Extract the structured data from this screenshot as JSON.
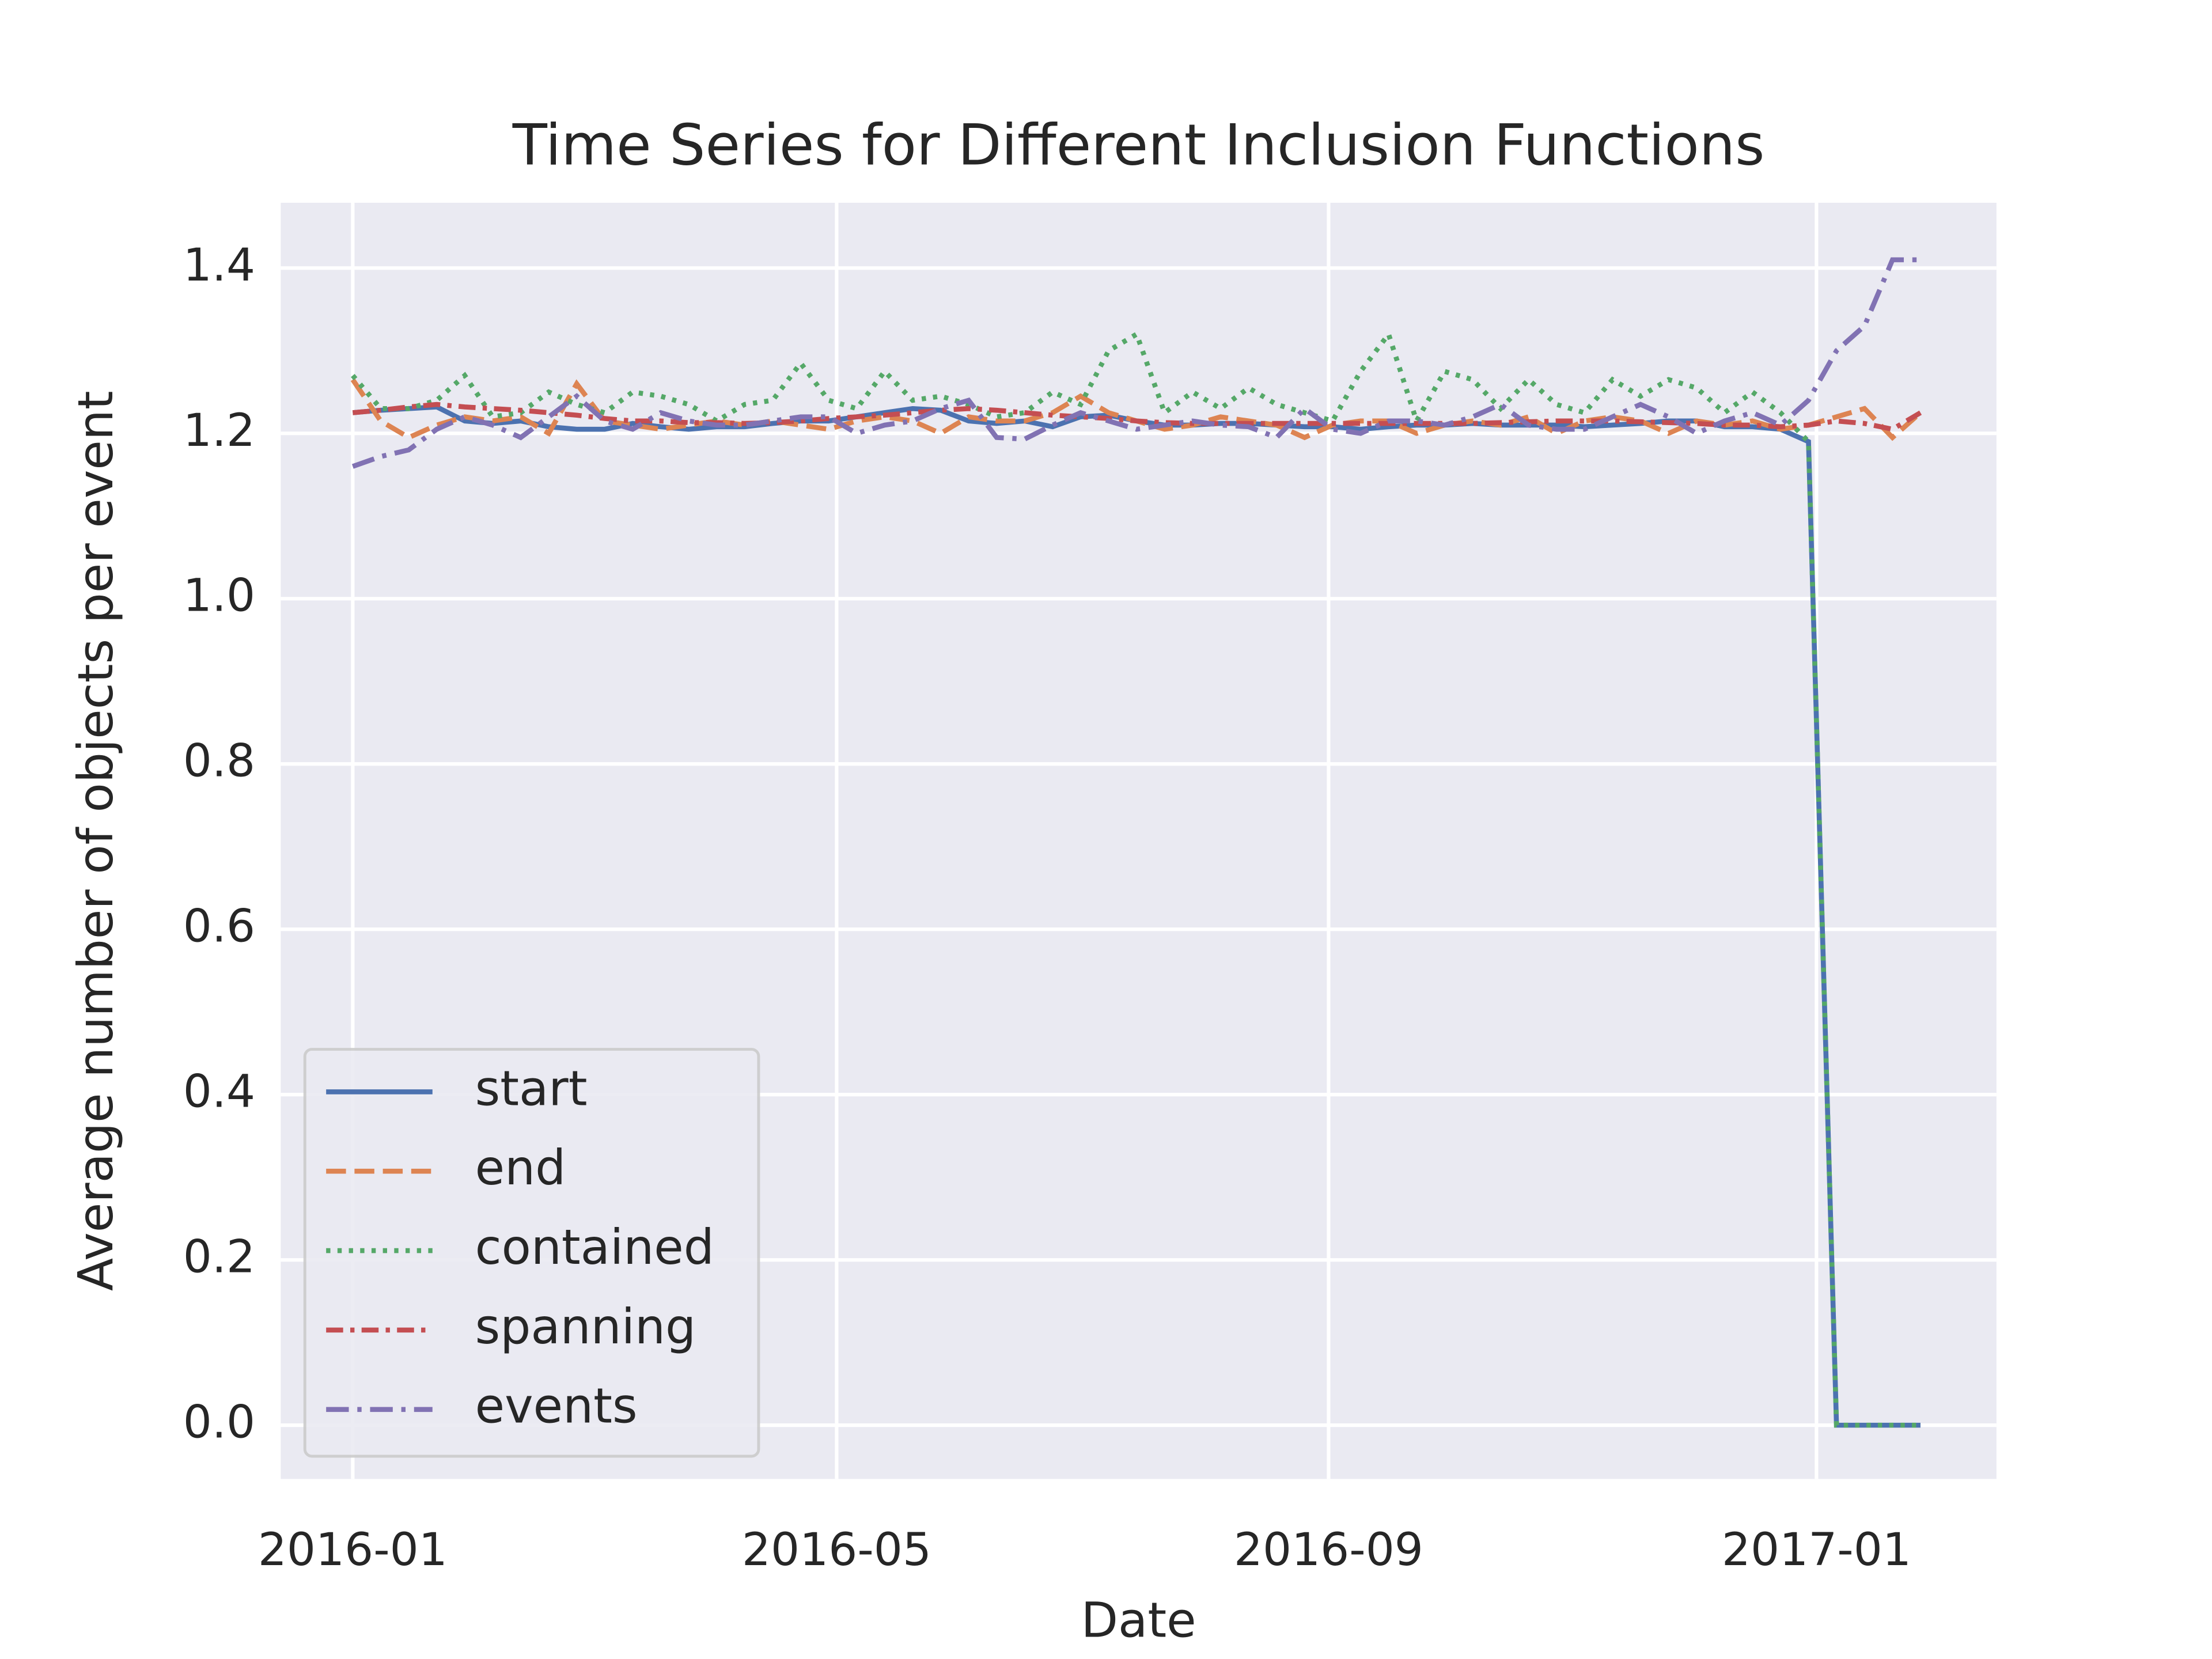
{
  "chart_data": {
    "type": "line",
    "title": "Time Series for Different Inclusion Functions",
    "x_label": "Date",
    "y_label": "Average number of objects per event",
    "x": [
      "2016-01-01",
      "2016-01-08",
      "2016-01-15",
      "2016-01-22",
      "2016-01-29",
      "2016-02-05",
      "2016-02-12",
      "2016-02-19",
      "2016-02-26",
      "2016-03-04",
      "2016-03-11",
      "2016-03-18",
      "2016-03-25",
      "2016-04-01",
      "2016-04-08",
      "2016-04-15",
      "2016-04-22",
      "2016-04-29",
      "2016-05-06",
      "2016-05-13",
      "2016-05-20",
      "2016-05-27",
      "2016-06-03",
      "2016-06-10",
      "2016-06-17",
      "2016-06-24",
      "2016-07-01",
      "2016-07-08",
      "2016-07-15",
      "2016-07-22",
      "2016-07-29",
      "2016-08-05",
      "2016-08-12",
      "2016-08-19",
      "2016-08-26",
      "2016-09-02",
      "2016-09-09",
      "2016-09-16",
      "2016-09-23",
      "2016-09-30",
      "2016-10-07",
      "2016-10-14",
      "2016-10-21",
      "2016-10-28",
      "2016-11-04",
      "2016-11-11",
      "2016-11-18",
      "2016-11-25",
      "2016-12-02",
      "2016-12-09",
      "2016-12-16",
      "2016-12-23",
      "2016-12-30",
      "2017-01-06",
      "2017-01-13",
      "2017-01-20",
      "2017-01-27"
    ],
    "series": [
      {
        "name": "start",
        "color": "#4c72b0",
        "linestyle": "solid",
        "values": [
          1.225,
          1.228,
          1.23,
          1.232,
          1.215,
          1.212,
          1.215,
          1.208,
          1.205,
          1.205,
          1.212,
          1.208,
          1.205,
          1.208,
          1.208,
          1.212,
          1.215,
          1.215,
          1.22,
          1.225,
          1.23,
          1.228,
          1.215,
          1.212,
          1.215,
          1.208,
          1.22,
          1.222,
          1.215,
          1.21,
          1.21,
          1.212,
          1.212,
          1.21,
          1.208,
          1.208,
          1.205,
          1.208,
          1.21,
          1.21,
          1.212,
          1.21,
          1.21,
          1.21,
          1.208,
          1.21,
          1.212,
          1.215,
          1.215,
          1.208,
          1.208,
          1.205,
          1.19,
          0,
          0,
          0,
          0
        ]
      },
      {
        "name": "end",
        "color": "#dd8452",
        "linestyle": "dashed",
        "values": [
          1.265,
          1.215,
          1.195,
          1.21,
          1.22,
          1.215,
          1.22,
          1.2,
          1.26,
          1.215,
          1.21,
          1.205,
          1.21,
          1.215,
          1.21,
          1.215,
          1.21,
          1.205,
          1.215,
          1.22,
          1.215,
          1.2,
          1.22,
          1.215,
          1.215,
          1.225,
          1.245,
          1.225,
          1.215,
          1.205,
          1.21,
          1.22,
          1.215,
          1.21,
          1.195,
          1.21,
          1.215,
          1.215,
          1.2,
          1.21,
          1.215,
          1.21,
          1.22,
          1.2,
          1.215,
          1.22,
          1.215,
          1.2,
          1.215,
          1.21,
          1.215,
          1.205,
          1.21,
          1.22,
          1.23,
          1.195,
          1.225
        ]
      },
      {
        "name": "contained",
        "color": "#55a868",
        "linestyle": "dotted",
        "values": [
          1.27,
          1.23,
          1.23,
          1.24,
          1.27,
          1.22,
          1.225,
          1.25,
          1.235,
          1.225,
          1.25,
          1.245,
          1.235,
          1.215,
          1.235,
          1.24,
          1.285,
          1.24,
          1.23,
          1.275,
          1.24,
          1.245,
          1.235,
          1.22,
          1.225,
          1.25,
          1.235,
          1.3,
          1.32,
          1.225,
          1.25,
          1.23,
          1.255,
          1.235,
          1.225,
          1.215,
          1.275,
          1.32,
          1.215,
          1.275,
          1.265,
          1.23,
          1.265,
          1.235,
          1.225,
          1.265,
          1.245,
          1.265,
          1.255,
          1.225,
          1.25,
          1.225,
          1.19,
          0,
          0,
          0,
          0
        ]
      },
      {
        "name": "spanning",
        "color": "#c44e52",
        "linestyle": "dashdot",
        "values": [
          1.225,
          1.228,
          1.232,
          1.235,
          1.232,
          1.23,
          1.228,
          1.225,
          1.222,
          1.218,
          1.215,
          1.215,
          1.213,
          1.213,
          1.212,
          1.213,
          1.215,
          1.218,
          1.22,
          1.222,
          1.225,
          1.228,
          1.23,
          1.228,
          1.225,
          1.222,
          1.22,
          1.218,
          1.215,
          1.213,
          1.212,
          1.212,
          1.212,
          1.212,
          1.212,
          1.212,
          1.212,
          1.212,
          1.212,
          1.212,
          1.212,
          1.213,
          1.214,
          1.215,
          1.215,
          1.215,
          1.214,
          1.213,
          1.212,
          1.21,
          1.21,
          1.208,
          1.21,
          1.215,
          1.212,
          1.205,
          1.225
        ]
      },
      {
        "name": "events",
        "color": "#8172b3",
        "linestyle": "dashdot-long",
        "values": [
          1.16,
          1.172,
          1.18,
          1.205,
          1.22,
          1.21,
          1.195,
          1.22,
          1.245,
          1.215,
          1.205,
          1.225,
          1.215,
          1.21,
          1.21,
          1.215,
          1.22,
          1.22,
          1.2,
          1.21,
          1.215,
          1.23,
          1.24,
          1.195,
          1.193,
          1.21,
          1.225,
          1.215,
          1.205,
          1.21,
          1.215,
          1.21,
          1.208,
          1.195,
          1.23,
          1.205,
          1.2,
          1.215,
          1.215,
          1.21,
          1.22,
          1.235,
          1.21,
          1.205,
          1.205,
          1.22,
          1.235,
          1.22,
          1.2,
          1.215,
          1.225,
          1.21,
          1.24,
          1.3,
          1.33,
          1.41,
          1.41
        ]
      }
    ],
    "xlim": [
      "2015-12-14",
      "2017-02-15"
    ],
    "xticks": [
      "2016-01",
      "2016-05",
      "2016-09",
      "2017-01"
    ],
    "ylim": [
      -0.065,
      1.479
    ],
    "yticks": [
      {
        "value": 0,
        "label": "0.0"
      },
      0.2,
      0.4,
      0.6,
      0.8,
      {
        "value": 1,
        "label": "1.0"
      },
      1.2,
      1.4
    ],
    "grid": true,
    "legend": "lower left"
  }
}
